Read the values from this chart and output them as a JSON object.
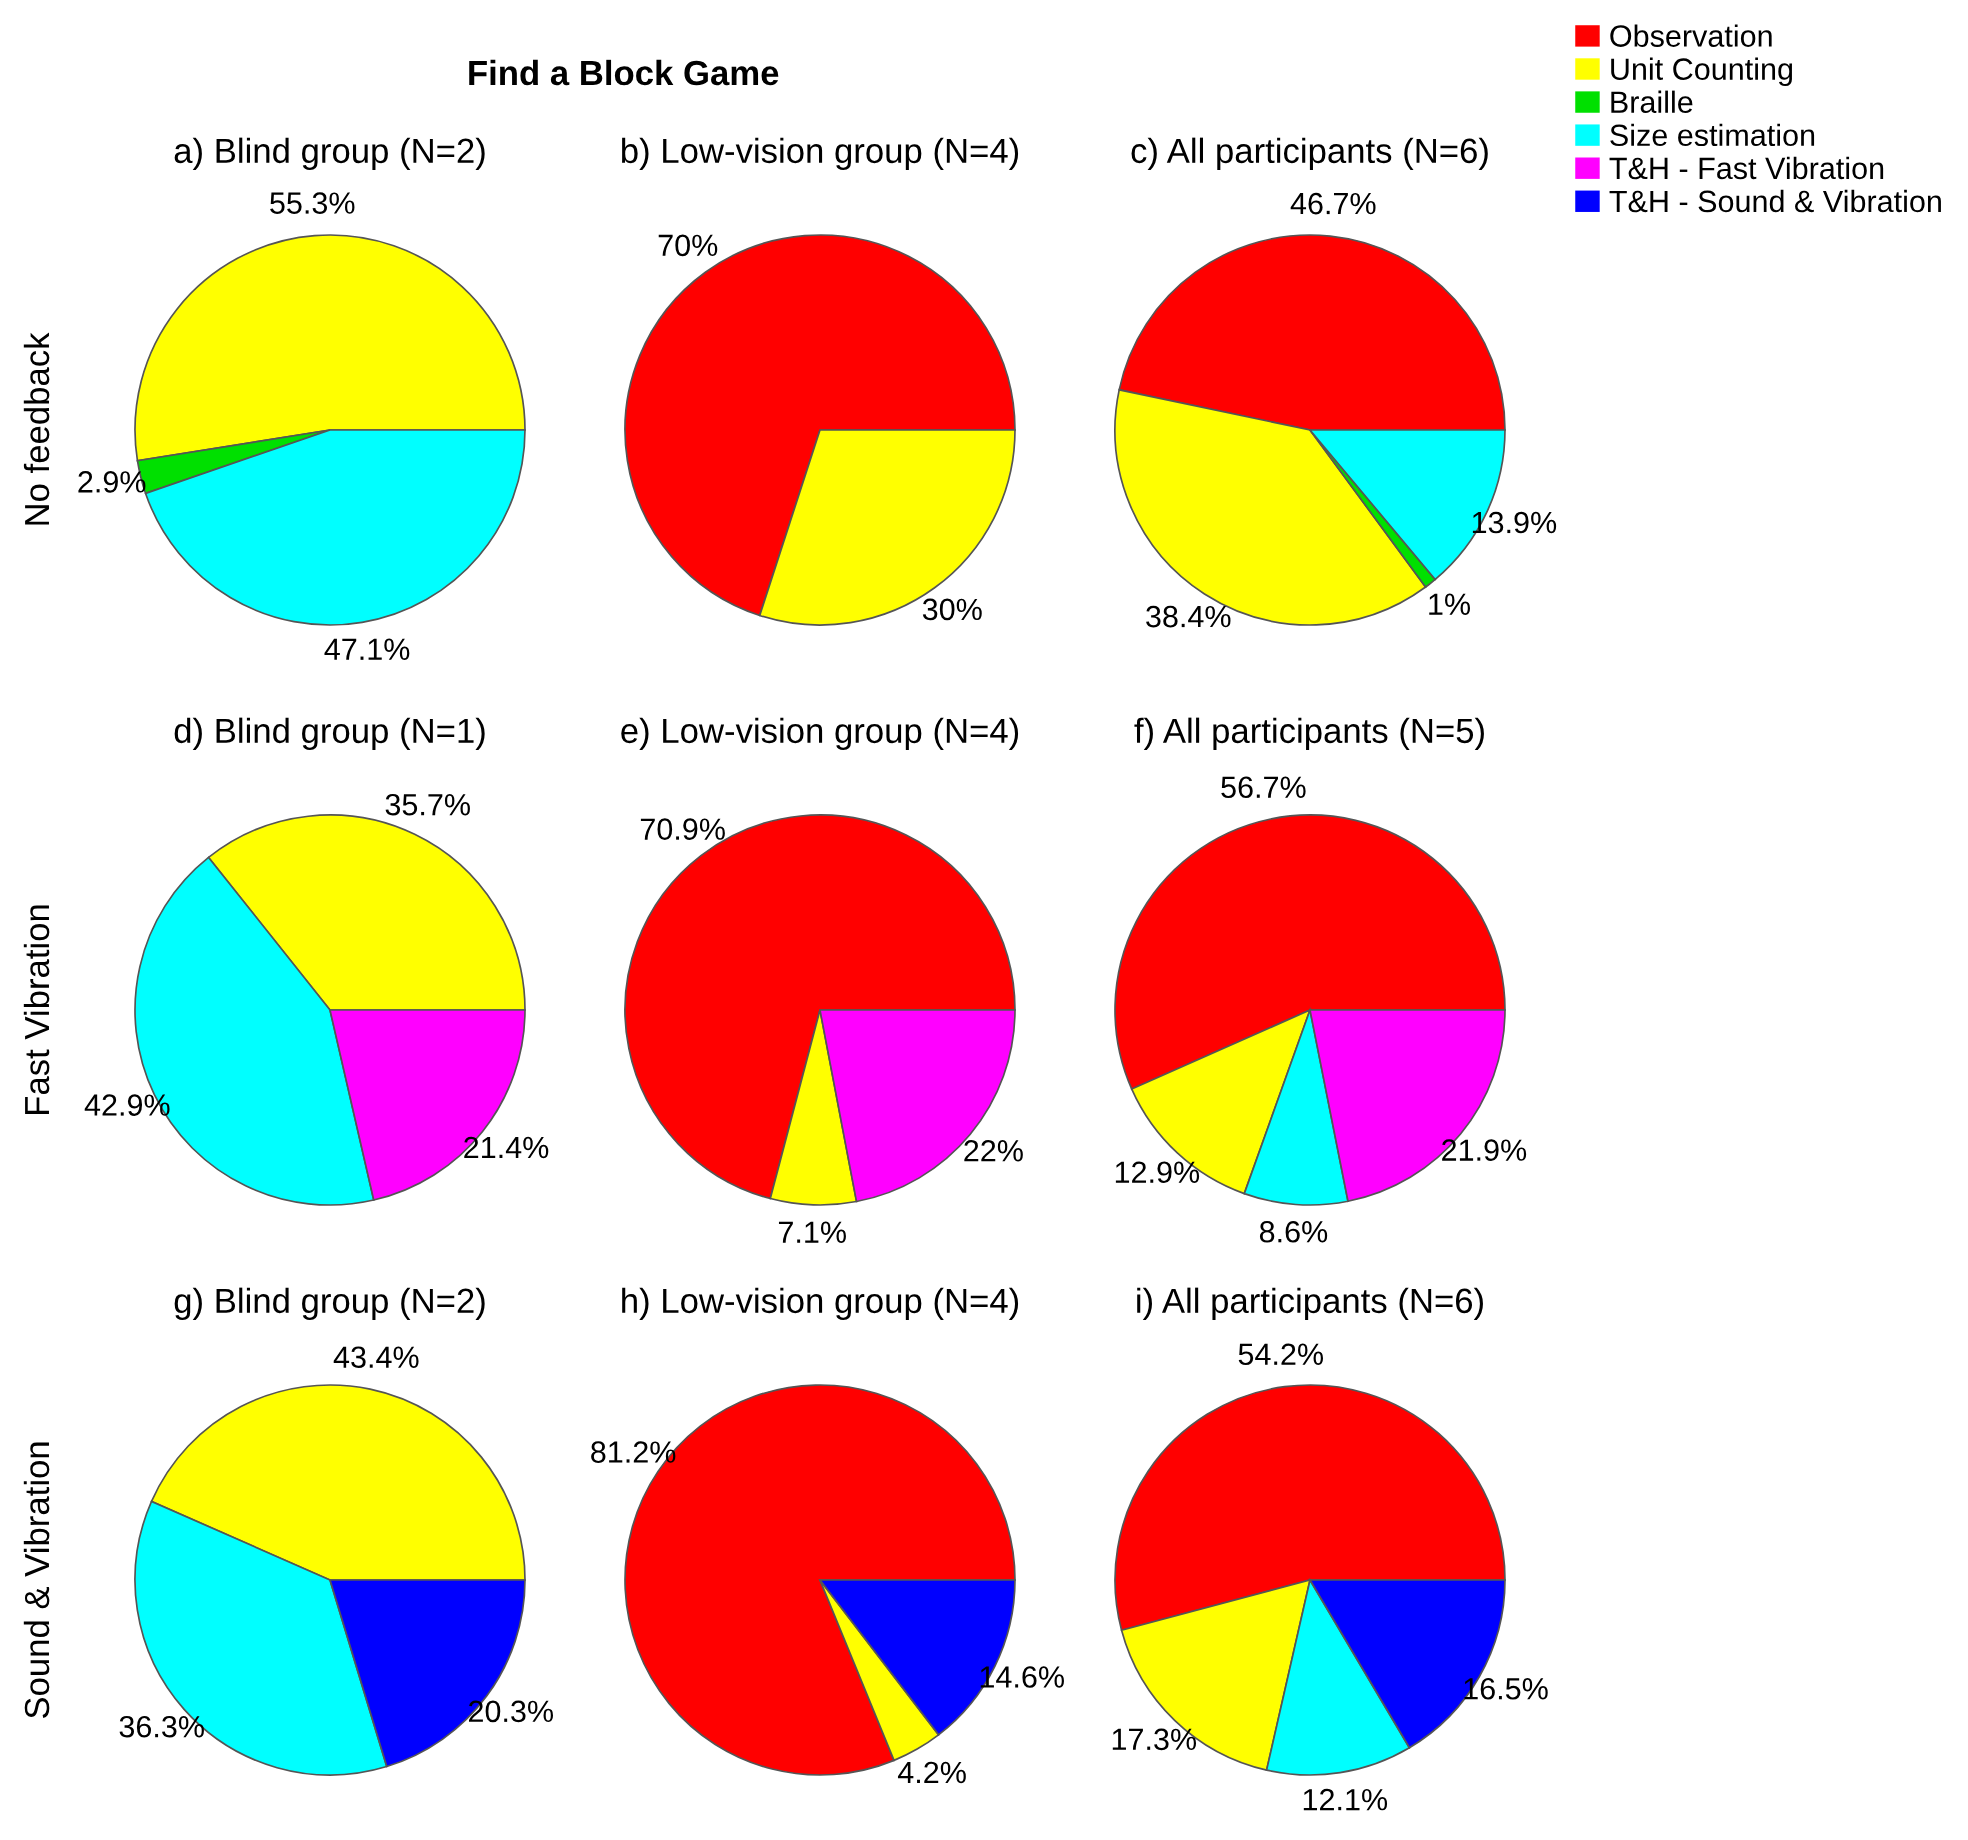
{
  "chart_data": [
    {
      "type": "pie",
      "title": "a) Blind group (N=2)",
      "ylabel": "No feedback",
      "annotations": [
        "Find a Block Game"
      ],
      "legend": "top right",
      "categories": [
        "Observation",
        "Unit Counting",
        "Braille",
        "Size estimation",
        "T&H - Fast Vibration",
        "T&H - Sound & Vibration"
      ],
      "values": [
        null,
        55.3,
        2.9,
        47.1,
        null,
        null
      ],
      "value_labels": [
        null,
        "55.3%",
        "2.9%",
        "47.1%",
        null,
        null
      ],
      "colors": [
        "#ff0000",
        "#ffff00",
        "#00e000",
        "#00ffff",
        "#ff00ff",
        "#0000ff"
      ]
    },
    {
      "type": "pie",
      "title": "b) Low-vision group (N=4)",
      "categories": [
        null,
        null,
        null,
        null,
        null,
        null
      ],
      "values": [
        70,
        30,
        null,
        null,
        null,
        null
      ],
      "value_labels": [
        "70%",
        "30%",
        null,
        null,
        null,
        null
      ],
      "colors": [
        "#ff0000",
        "#ffff00",
        "#00e000",
        "#00ffff",
        "#ff00ff",
        "#0000ff"
      ]
    },
    {
      "type": "pie",
      "title": "c) All participants (N=6)",
      "categories": [
        null,
        null,
        null,
        null,
        null,
        null
      ],
      "values": [
        46.7,
        38.4,
        1,
        13.9,
        null,
        null
      ],
      "value_labels": [
        "46.7%",
        "38.4%",
        "1%",
        "13.9%",
        null,
        null
      ],
      "colors": [
        "#ff0000",
        "#ffff00",
        "#00e000",
        "#00ffff",
        "#ff00ff",
        "#0000ff"
      ]
    },
    {
      "type": "pie",
      "title": "d) Blind group (N=1)",
      "ylabel": "Fast Vibration",
      "categories": [
        null,
        null,
        null,
        null,
        null,
        null
      ],
      "values": [
        null,
        35.7,
        null,
        42.9,
        21.4,
        null
      ],
      "value_labels": [
        null,
        "35.7%",
        null,
        "42.9%",
        "21.4%",
        null
      ],
      "colors": [
        "#ff0000",
        "#ffff00",
        "#00e000",
        "#00ffff",
        "#ff00ff",
        "#0000ff"
      ]
    },
    {
      "type": "pie",
      "title": "e) Low-vision group (N=4)",
      "categories": [
        null,
        null,
        null,
        null,
        null,
        null
      ],
      "values": [
        70.9,
        7.1,
        null,
        null,
        22,
        null
      ],
      "value_labels": [
        "70.9%",
        "7.1%",
        null,
        null,
        "22%",
        null
      ],
      "colors": [
        "#ff0000",
        "#ffff00",
        "#00e000",
        "#00ffff",
        "#ff00ff",
        "#0000ff"
      ]
    },
    {
      "type": "pie",
      "title": "f) All participants (N=5)",
      "categories": [
        null,
        null,
        null,
        null,
        null,
        null
      ],
      "values": [
        56.7,
        12.9,
        null,
        8.6,
        21.9,
        null
      ],
      "value_labels": [
        "56.7%",
        "12.9%",
        null,
        "8.6%",
        "21.9%",
        null
      ],
      "colors": [
        "#ff0000",
        "#ffff00",
        "#00e000",
        "#00ffff",
        "#ff00ff",
        "#0000ff"
      ]
    },
    {
      "type": "pie",
      "title": "g) Blind group (N=2)",
      "ylabel": "Sound & Vibration",
      "categories": [
        null,
        null,
        null,
        null,
        null,
        null
      ],
      "values": [
        null,
        43.4,
        null,
        36.3,
        null,
        20.3
      ],
      "value_labels": [
        null,
        "43.4%",
        null,
        "36.3%",
        null,
        "20.3%"
      ],
      "colors": [
        "#ff0000",
        "#ffff00",
        "#00e000",
        "#00ffff",
        "#ff00ff",
        "#0000ff"
      ]
    },
    {
      "type": "pie",
      "title": "h) Low-vision group (N=4)",
      "categories": [
        null,
        null,
        null,
        null,
        null,
        null
      ],
      "values": [
        81.2,
        4.2,
        null,
        null,
        null,
        14.6
      ],
      "value_labels": [
        "81.2%",
        "4.2%",
        null,
        null,
        null,
        "14.6%"
      ],
      "colors": [
        "#ff0000",
        "#ffff00",
        "#00e000",
        "#00ffff",
        "#ff00ff",
        "#0000ff"
      ]
    },
    {
      "type": "pie",
      "title": "i) All participants (N=6)",
      "categories": [
        null,
        null,
        null,
        null,
        null,
        null
      ],
      "values": [
        54.2,
        17.3,
        null,
        12.1,
        null,
        16.5
      ],
      "value_labels": [
        "54.2%",
        "17.3%",
        null,
        "12.1%",
        null,
        "16.5%"
      ],
      "colors": [
        "#ff0000",
        "#ffff00",
        "#00e000",
        "#00ffff",
        "#ff00ff",
        "#0000ff"
      ]
    }
  ]
}
